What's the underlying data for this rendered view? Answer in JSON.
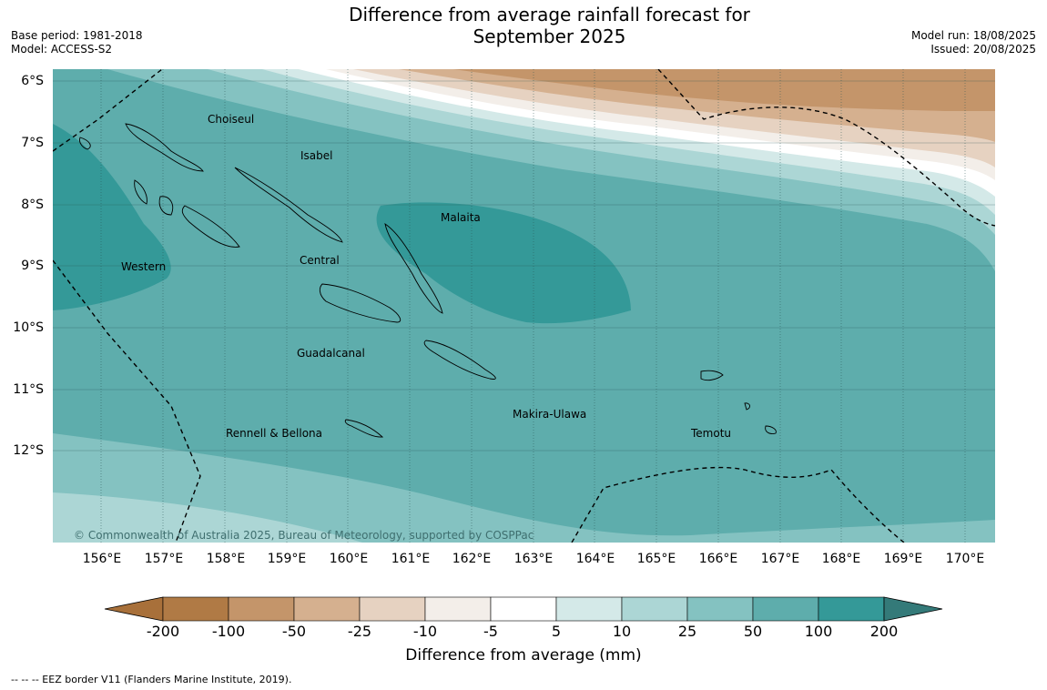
{
  "title_line1": "Difference from average rainfall forecast for",
  "title_line2": "September 2025",
  "base_period": "Base period: 1981-2018",
  "model": "Model: ACCESS-S2",
  "model_run": "Model run: 18/08/2025",
  "issued": "Issued: 20/08/2025",
  "lat_labels": [
    "6°S",
    "7°S",
    "8°S",
    "9°S",
    "10°S",
    "11°S",
    "12°S"
  ],
  "lon_labels": [
    "156°E",
    "157°E",
    "158°E",
    "159°E",
    "160°E",
    "161°E",
    "162°E",
    "163°E",
    "164°E",
    "165°E",
    "166°E",
    "167°E",
    "168°E",
    "169°E",
    "170°E"
  ],
  "provinces": [
    "Choiseul",
    "Isabel",
    "Malaita",
    "Western",
    "Central",
    "Guadalcanal",
    "Makira-Ulawa",
    "Temotu",
    "Rennell & Bellona"
  ],
  "copyright": "© Commonwealth of Australia 2025, Bureau of Meteorology, supported by COSPPac",
  "colorbar": {
    "ticks": [
      "-200",
      "-100",
      "-50",
      "-25",
      "-10",
      "-5",
      "5",
      "10",
      "25",
      "50",
      "100",
      "200"
    ],
    "colors": [
      "#a8703a",
      "#b07a45",
      "#c4956a",
      "#d5b08f",
      "#e6d2c1",
      "#f3eee9",
      "#ffffff",
      "#d4e9e8",
      "#acd6d5",
      "#84c2c1",
      "#5eadac",
      "#349998",
      "#347a79"
    ],
    "title": "Difference from average (mm)"
  },
  "footer": "--  --  -- EEZ border V11 (Flanders Marine Institute, 2019).",
  "colors": {
    "dry_strong": "#c4956a",
    "wet_strong": "#349998",
    "wet_mid": "#5eadac",
    "wet_light": "#84c2c1"
  }
}
